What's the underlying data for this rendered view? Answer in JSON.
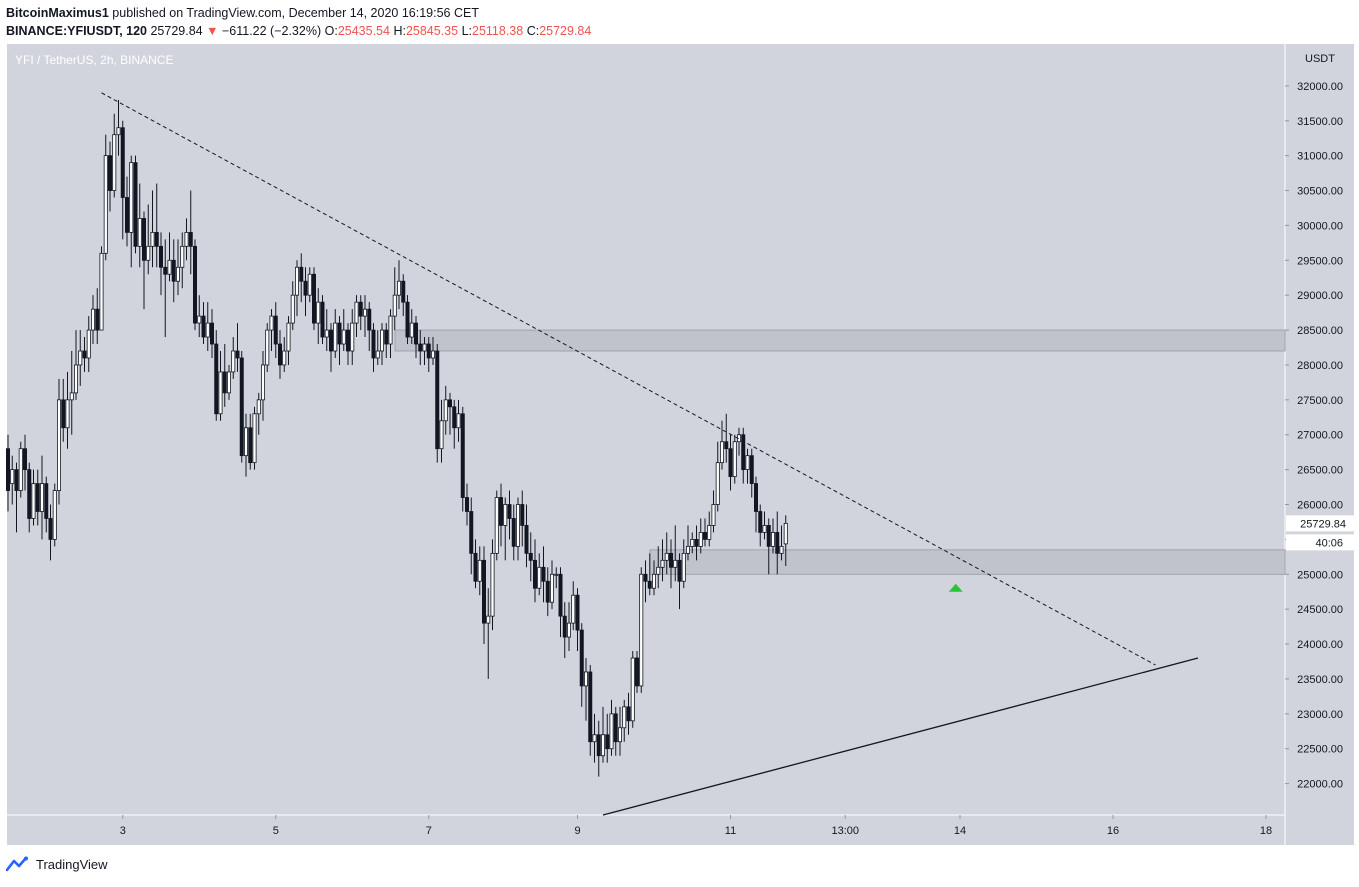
{
  "header": {
    "author": "BitcoinMaximus1",
    "published": "published on TradingView.com, December 14, 2020 16:19:56 CET",
    "symbol": "BINANCE:YFIUSDT, 120",
    "last": "25729.84",
    "change": "−611.22 (−2.32%)",
    "o_label": "O:",
    "o_val": "25435.54",
    "h_label": "H:",
    "h_val": "25845.35",
    "l_label": "L:",
    "l_val": "25118.38",
    "c_label": "C:",
    "c_val": "25729.84"
  },
  "watermark": "YFI / TetherUS, 2h, BINANCE",
  "footer": {
    "brand": "TradingView"
  },
  "colors": {
    "background": "#d1d4dc",
    "up_body": "#ffffff",
    "down_body": "#131722",
    "zone": "#b2b5be",
    "arrow": "#26c636",
    "change_down": "#ef5350"
  },
  "chart_data": {
    "type": "candlestick",
    "currency": "USDT",
    "x_ticks": [
      "3",
      "5",
      "7",
      "9",
      "11",
      "13:00",
      "14",
      "16",
      "18"
    ],
    "y_ticks": [
      "22000.00",
      "22500.00",
      "23000.00",
      "23500.00",
      "24000.00",
      "24500.00",
      "25000.00",
      "25500.00",
      "26000.00",
      "26500.00",
      "27000.00",
      "27500.00",
      "28000.00",
      "28500.00",
      "29000.00",
      "29500.00",
      "30000.00",
      "30500.00",
      "31000.00",
      "31500.00",
      "32000.00"
    ],
    "ylim": [
      21550,
      32600
    ],
    "last_price_label": "25729.84",
    "countdown_label": "40:06",
    "candles": [
      [
        26800,
        26200,
        27000,
        25900
      ],
      [
        26300,
        26500,
        26700,
        26000
      ],
      [
        26500,
        26200,
        26600,
        25600
      ],
      [
        26200,
        26800,
        26900,
        26100
      ],
      [
        26800,
        26500,
        27000,
        26200
      ],
      [
        26500,
        25800,
        26600,
        25600
      ],
      [
        25800,
        26300,
        26500,
        25700
      ],
      [
        26300,
        25900,
        26500,
        25700
      ],
      [
        25900,
        26300,
        26700,
        25500
      ],
      [
        26300,
        25800,
        26400,
        25600
      ],
      [
        25800,
        25500,
        26000,
        25200
      ],
      [
        25500,
        26200,
        26300,
        25400
      ],
      [
        26200,
        27500,
        27800,
        26000
      ],
      [
        27500,
        27100,
        27800,
        26900
      ],
      [
        27100,
        27500,
        27900,
        26800
      ],
      [
        27500,
        27600,
        28200,
        27000
      ],
      [
        27600,
        28000,
        28500,
        27500
      ],
      [
        28000,
        28200,
        28500,
        27700
      ],
      [
        28200,
        28100,
        28400,
        27900
      ],
      [
        28100,
        28500,
        28700,
        27900
      ],
      [
        28500,
        28800,
        29000,
        28300
      ],
      [
        28800,
        28500,
        29100,
        28300
      ],
      [
        28500,
        29600,
        29700,
        28500
      ],
      [
        29600,
        31000,
        31300,
        29500
      ],
      [
        31000,
        30500,
        31200,
        30200
      ],
      [
        30500,
        31300,
        31600,
        30400
      ],
      [
        31300,
        31400,
        31800,
        31000
      ],
      [
        31400,
        30400,
        31500,
        29800
      ],
      [
        30400,
        29900,
        30700,
        29700
      ],
      [
        29900,
        30900,
        31000,
        29400
      ],
      [
        30900,
        29700,
        31000,
        29600
      ],
      [
        29700,
        30100,
        30600,
        29400
      ],
      [
        30100,
        29500,
        30200,
        28800
      ],
      [
        29500,
        29700,
        30300,
        29300
      ],
      [
        29700,
        29900,
        30500,
        29400
      ],
      [
        29900,
        29700,
        30600,
        29400
      ],
      [
        29700,
        29400,
        29900,
        29000
      ],
      [
        29400,
        29300,
        29800,
        28400
      ],
      [
        29300,
        29500,
        29900,
        29200
      ],
      [
        29500,
        29200,
        29800,
        28900
      ],
      [
        29200,
        29400,
        29800,
        29000
      ],
      [
        29400,
        29700,
        29900,
        29100
      ],
      [
        29700,
        29900,
        30100,
        29500
      ],
      [
        29900,
        29700,
        30500,
        29300
      ],
      [
        29700,
        28600,
        29800,
        28500
      ],
      [
        28600,
        28700,
        29000,
        28400
      ],
      [
        28700,
        28400,
        28900,
        28300
      ],
      [
        28400,
        28600,
        28900,
        28200
      ],
      [
        28600,
        28300,
        28800,
        28100
      ],
      [
        28300,
        27300,
        28500,
        27200
      ],
      [
        27300,
        27900,
        28200,
        27200
      ],
      [
        27900,
        27600,
        28300,
        27400
      ],
      [
        27600,
        27900,
        28000,
        27500
      ],
      [
        27900,
        28200,
        28400,
        27800
      ],
      [
        28200,
        28100,
        28600,
        27900
      ],
      [
        28100,
        26700,
        28200,
        26600
      ],
      [
        26700,
        27100,
        27300,
        26400
      ],
      [
        27100,
        26600,
        27300,
        26500
      ],
      [
        26600,
        27300,
        27400,
        26500
      ],
      [
        27300,
        27500,
        27600,
        27000
      ],
      [
        27500,
        28000,
        28200,
        27200
      ],
      [
        28000,
        28500,
        28600,
        27900
      ],
      [
        28500,
        28700,
        28800,
        28200
      ],
      [
        28700,
        28300,
        28900,
        28100
      ],
      [
        28300,
        28000,
        28500,
        27800
      ],
      [
        28000,
        28200,
        28400,
        27900
      ],
      [
        28200,
        28600,
        28700,
        28000
      ],
      [
        28600,
        29000,
        29200,
        28500
      ],
      [
        29000,
        29400,
        29500,
        28700
      ],
      [
        29400,
        29200,
        29600,
        28900
      ],
      [
        29200,
        29000,
        29400,
        28700
      ],
      [
        29000,
        29300,
        29400,
        28900
      ],
      [
        29300,
        28600,
        29400,
        28500
      ],
      [
        28600,
        28900,
        29100,
        28300
      ],
      [
        28900,
        28400,
        29000,
        28300
      ],
      [
        28400,
        28500,
        28800,
        28200
      ],
      [
        28500,
        28200,
        28600,
        27900
      ],
      [
        28200,
        28600,
        28800,
        28100
      ],
      [
        28600,
        28300,
        28700,
        28000
      ],
      [
        28300,
        28500,
        28800,
        28200
      ],
      [
        28500,
        28200,
        28600,
        28000
      ],
      [
        28200,
        28600,
        28800,
        28000
      ],
      [
        28600,
        28900,
        29000,
        28400
      ],
      [
        28900,
        28700,
        29000,
        28500
      ],
      [
        28700,
        28800,
        29000,
        28400
      ],
      [
        28800,
        28500,
        28900,
        28200
      ],
      [
        28500,
        28100,
        28600,
        27900
      ],
      [
        28100,
        28200,
        28500,
        28000
      ],
      [
        28200,
        28500,
        28600,
        28000
      ],
      [
        28500,
        28300,
        28600,
        28100
      ],
      [
        28300,
        28700,
        28800,
        28100
      ],
      [
        28700,
        29000,
        29400,
        28500
      ],
      [
        29000,
        29200,
        29500,
        28800
      ],
      [
        29200,
        28900,
        29300,
        28700
      ],
      [
        28900,
        28400,
        29000,
        28300
      ],
      [
        28400,
        28600,
        28800,
        28300
      ],
      [
        28600,
        28300,
        28700,
        28100
      ],
      [
        28300,
        28200,
        28500,
        28000
      ],
      [
        28200,
        28300,
        28400,
        28000
      ],
      [
        28300,
        28100,
        28400,
        27900
      ],
      [
        28100,
        28200,
        28400,
        28000
      ],
      [
        28200,
        26800,
        28300,
        26600
      ],
      [
        26800,
        27200,
        27500,
        26600
      ],
      [
        27200,
        27500,
        27700,
        27000
      ],
      [
        27500,
        27400,
        27600,
        27000
      ],
      [
        27400,
        27100,
        27500,
        26800
      ],
      [
        27100,
        27300,
        27500,
        26900
      ],
      [
        27300,
        26100,
        27400,
        25900
      ],
      [
        26100,
        25900,
        26300,
        25700
      ],
      [
        25900,
        25300,
        26100,
        25000
      ],
      [
        25300,
        24900,
        25500,
        24800
      ],
      [
        24900,
        25200,
        25400,
        24700
      ],
      [
        25200,
        24300,
        25400,
        24000
      ],
      [
        24300,
        24400,
        24800,
        23500
      ],
      [
        24400,
        25300,
        25500,
        24200
      ],
      [
        25300,
        26100,
        26200,
        25200
      ],
      [
        26100,
        25700,
        26300,
        25400
      ],
      [
        25700,
        26000,
        26100,
        25200
      ],
      [
        26000,
        25800,
        26200,
        25500
      ],
      [
        25800,
        25400,
        26000,
        25200
      ],
      [
        25400,
        26000,
        26100,
        25200
      ],
      [
        26000,
        25700,
        26200,
        25400
      ],
      [
        25700,
        25300,
        26000,
        25100
      ],
      [
        25300,
        25200,
        25600,
        24900
      ],
      [
        25200,
        24800,
        25500,
        24600
      ],
      [
        24800,
        25100,
        25300,
        24700
      ],
      [
        25100,
        24900,
        25400,
        24600
      ],
      [
        24900,
        24600,
        25100,
        24400
      ],
      [
        24600,
        25000,
        25200,
        24500
      ],
      [
        25000,
        25000,
        25100,
        24800
      ],
      [
        25000,
        24400,
        25100,
        24100
      ],
      [
        24400,
        24100,
        24600,
        23800
      ],
      [
        24100,
        24300,
        24600,
        23900
      ],
      [
        24300,
        24700,
        24900,
        24200
      ],
      [
        24700,
        24200,
        24800,
        23900
      ],
      [
        24200,
        23400,
        24300,
        23100
      ],
      [
        23400,
        23600,
        23800,
        22900
      ],
      [
        23600,
        22600,
        23700,
        22400
      ],
      [
        22600,
        22700,
        23000,
        22300
      ],
      [
        22700,
        22400,
        22900,
        22100
      ],
      [
        22400,
        22700,
        23100,
        22300
      ],
      [
        22700,
        22500,
        23000,
        22300
      ],
      [
        22500,
        23000,
        23200,
        22400
      ],
      [
        23000,
        22600,
        23100,
        22400
      ],
      [
        22600,
        22800,
        23100,
        22400
      ],
      [
        22800,
        23100,
        23200,
        22600
      ],
      [
        23100,
        22900,
        23300,
        22700
      ],
      [
        22900,
        23800,
        23900,
        22800
      ],
      [
        23800,
        23400,
        23900,
        23300
      ],
      [
        23400,
        25000,
        25100,
        23300
      ],
      [
        25000,
        24900,
        25200,
        24600
      ],
      [
        24900,
        24800,
        25300,
        24700
      ],
      [
        24800,
        25000,
        25200,
        24700
      ],
      [
        25000,
        25100,
        25400,
        24800
      ],
      [
        25100,
        25200,
        25500,
        24900
      ],
      [
        25200,
        25300,
        25600,
        25000
      ],
      [
        25300,
        25100,
        25500,
        24800
      ],
      [
        25100,
        25200,
        25700,
        24900
      ],
      [
        25200,
        24900,
        25300,
        24500
      ],
      [
        24900,
        25300,
        25500,
        24800
      ],
      [
        25300,
        25400,
        25700,
        25200
      ],
      [
        25400,
        25500,
        25600,
        25300
      ],
      [
        25500,
        25400,
        25700,
        25200
      ],
      [
        25400,
        25600,
        25800,
        25300
      ],
      [
        25600,
        25500,
        25800,
        25400
      ],
      [
        25500,
        25700,
        25900,
        25400
      ],
      [
        25700,
        26000,
        26200,
        25600
      ],
      [
        26000,
        26600,
        26900,
        25900
      ],
      [
        26600,
        26900,
        27200,
        26500
      ],
      [
        26900,
        26800,
        27300,
        26600
      ],
      [
        26800,
        26400,
        27000,
        26200
      ],
      [
        26400,
        26900,
        27000,
        26300
      ],
      [
        26900,
        27000,
        27100,
        26700
      ],
      [
        27000,
        26500,
        27100,
        26300
      ],
      [
        26500,
        26700,
        26800,
        26300
      ],
      [
        26700,
        26300,
        26800,
        26100
      ],
      [
        26300,
        25900,
        26400,
        25600
      ],
      [
        25900,
        25600,
        26000,
        25400
      ],
      [
        25600,
        25700,
        25900,
        25500
      ],
      [
        25700,
        25400,
        25800,
        25000
      ],
      [
        25400,
        25600,
        25800,
        25300
      ],
      [
        25600,
        25300,
        25900,
        25000
      ],
      [
        25300,
        25400,
        25700,
        25200
      ],
      [
        25435.54,
        25729.84,
        25845.35,
        25118.38
      ]
    ],
    "resistance_zone": [
      28200,
      28500
    ],
    "support_zone": [
      25000,
      25350
    ],
    "descending_resistance": {
      "from_index": 22,
      "from_price": 31900,
      "to_index": 270,
      "to_price": 23700,
      "style": "dashed"
    },
    "ascending_support": {
      "from_index": 140,
      "from_price": 21550,
      "to_index": 280,
      "to_price": 23800,
      "style": "solid"
    },
    "signal_arrow": {
      "index": 223,
      "price": 24850,
      "direction": "up"
    }
  }
}
